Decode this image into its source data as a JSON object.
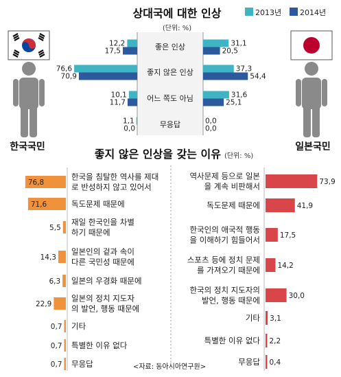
{
  "chart_data": [
    {
      "type": "bar",
      "title": "상대국에 대한 인상",
      "unit": "(단위: %)",
      "categories": [
        "좋은 인상",
        "좋지 않은 인상",
        "어느 쪽도 아님",
        "무응답"
      ],
      "legend": [
        "2013년",
        "2014년"
      ],
      "groups": [
        {
          "name": "한국국민",
          "series": [
            {
              "name": "2013년",
              "values": [
                12.2,
                76.6,
                10.1,
                1.1
              ],
              "labels": [
                "12,2",
                "76,6",
                "10,1",
                "1,1"
              ]
            },
            {
              "name": "2014년",
              "values": [
                17.5,
                70.9,
                11.7,
                0.0
              ],
              "labels": [
                "17,5",
                "70,9",
                "11,7",
                "0,0"
              ]
            }
          ]
        },
        {
          "name": "일본국민",
          "series": [
            {
              "name": "2013년",
              "values": [
                31.1,
                37.3,
                31.6,
                0.0
              ],
              "labels": [
                "31,1",
                "37,3",
                "31,6",
                "0,0"
              ]
            },
            {
              "name": "2014년",
              "values": [
                20.5,
                54.4,
                25.1,
                0.0
              ],
              "labels": [
                "20,5",
                "54,4",
                "25,1",
                "0,0"
              ]
            }
          ]
        }
      ],
      "colors": {
        "2013년": "#3fb4c4",
        "2014년": "#2d5a9c"
      }
    },
    {
      "type": "bar",
      "title": "좋지 않은 인상을 갖는 이유",
      "unit": "(단위: %)",
      "korea": {
        "categories": [
          [
            "한국을 침탈한 역사를 제대",
            "로 반성하지 않고 있어서"
          ],
          [
            "독도문제 때문에"
          ],
          [
            "재일 한국인을 차별",
            "하기 때문에"
          ],
          [
            "일본인의 겉과 속이",
            "다른 국민성 때문에"
          ],
          [
            "일본의 우경화 때문에"
          ],
          [
            "일본의 정치 지도자",
            "의 발언, 행동 때문에"
          ],
          [
            "기타"
          ],
          [
            "특별한 이유 없다"
          ],
          [
            "무응답"
          ]
        ],
        "values": [
          76.8,
          71.6,
          5.5,
          14.3,
          6.3,
          22.9,
          0.7,
          0.7,
          0.7
        ],
        "labels": [
          "76,8",
          "71,6",
          "5,5",
          "14,3",
          "6,3",
          "22,9",
          "0,7",
          "0,7",
          "0,7"
        ],
        "color": "#f0923c"
      },
      "japan": {
        "categories": [
          [
            "역사문제 등으로 일본",
            "을 계속 비판해서"
          ],
          [
            "독도문제 때문에"
          ],
          [
            "한국인의 애국적 행동",
            "을 이해하기 힘들어서"
          ],
          [
            "스포츠 등에 정치 문제",
            "를 가져오기 때문에"
          ],
          [
            "한국의 정치 지도자의",
            "발언, 행동 때문에"
          ],
          [
            "기타"
          ],
          [
            "특별한 이유 없다"
          ],
          [
            "무응답"
          ]
        ],
        "values": [
          73.9,
          41.9,
          17.5,
          14.2,
          30.0,
          3.1,
          2.2,
          0.4
        ],
        "labels": [
          "73,9",
          "41,9",
          "17,5",
          "14,2",
          "30,0",
          "3,1",
          "2,2",
          "0,4"
        ],
        "color": "#d9464a"
      }
    }
  ],
  "source": "<자료: 동아시아연구원>",
  "colors": {
    "korea_flag_red": "#cd2e3a",
    "korea_flag_blue": "#0047a0",
    "japan_flag_red": "#bc002d",
    "person": "#8a8a8a"
  },
  "icons": {
    "korea_flag": "south-korea-flag-icon",
    "japan_flag": "japan-flag-icon",
    "person": "person-silhouette-icon"
  }
}
